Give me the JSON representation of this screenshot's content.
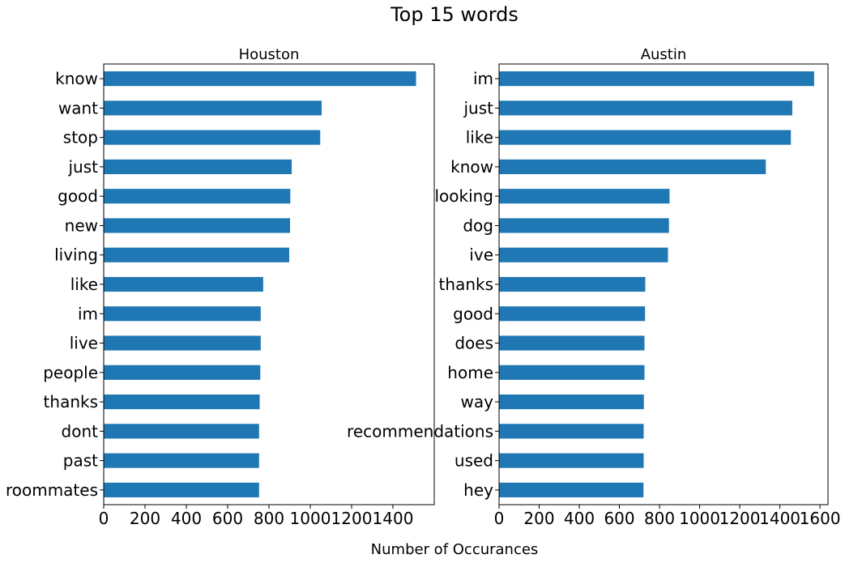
{
  "title": "Top 15 words",
  "xlabel": "Number of Occurances",
  "bar_color": "#1f77b4",
  "chart_data": [
    {
      "type": "bar",
      "orientation": "horizontal",
      "title": "Houston",
      "categories": [
        "know",
        "want",
        "stop",
        "just",
        "good",
        "new",
        "living",
        "like",
        "im",
        "live",
        "people",
        "thanks",
        "dont",
        "past",
        "roommates"
      ],
      "values": [
        1512,
        1055,
        1048,
        910,
        903,
        902,
        898,
        772,
        760,
        760,
        758,
        755,
        752,
        752,
        752
      ],
      "xlim": [
        0,
        1600
      ],
      "xticks": [
        0,
        200,
        400,
        600,
        800,
        1000,
        1200,
        1400
      ],
      "xtick_labels": [
        "0",
        "200",
        "400",
        "600",
        "800",
        "1000",
        "1200",
        "1400"
      ]
    },
    {
      "type": "bar",
      "orientation": "horizontal",
      "title": "Austin",
      "categories": [
        "im",
        "just",
        "like",
        "know",
        "looking",
        "dog",
        "ive",
        "thanks",
        "good",
        "does",
        "home",
        "way",
        "recommendations",
        "used",
        "hey"
      ],
      "values": [
        1571,
        1462,
        1455,
        1330,
        850,
        847,
        842,
        729,
        728,
        725,
        725,
        722,
        721,
        721,
        720
      ],
      "xlim": [
        0,
        1640
      ],
      "xticks": [
        0,
        200,
        400,
        600,
        800,
        1000,
        1200,
        1400,
        1600
      ],
      "xtick_labels": [
        "0",
        "200",
        "400",
        "600",
        "800",
        "1000",
        "1200",
        "1400",
        "1600"
      ]
    }
  ]
}
